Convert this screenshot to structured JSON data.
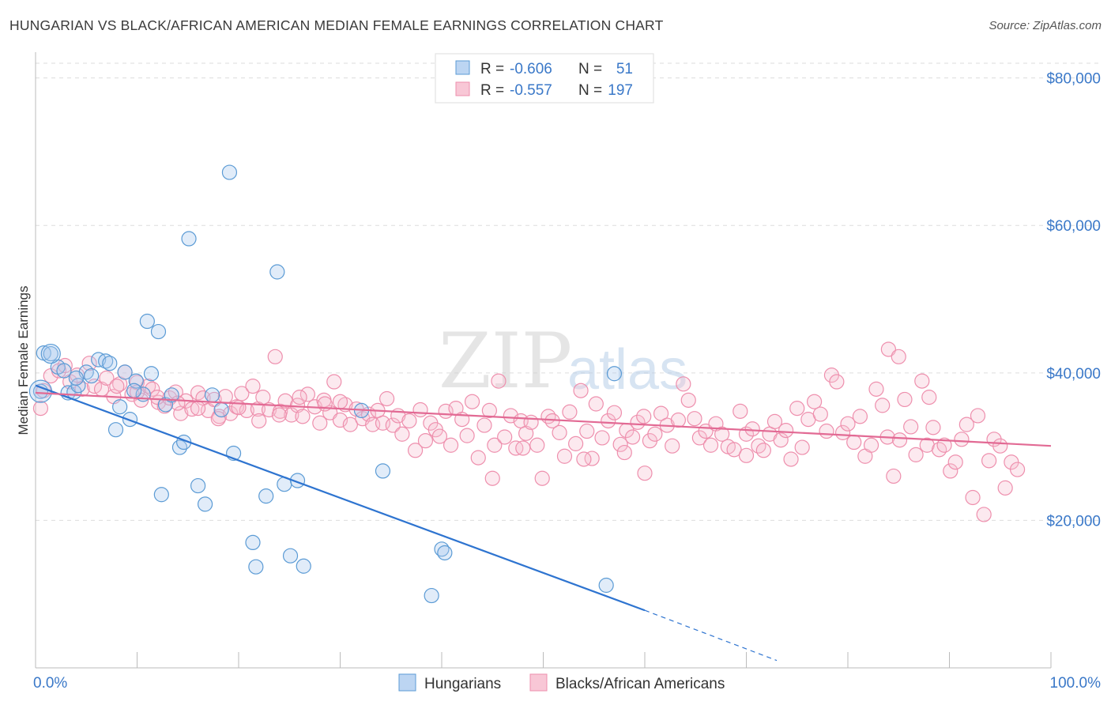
{
  "header": {
    "title": "HUNGARIAN VS BLACK/AFRICAN AMERICAN MEDIAN FEMALE EARNINGS CORRELATION CHART",
    "source": "Source: ZipAtlas.com"
  },
  "watermark": {
    "zip": "ZIP",
    "atlas": "atlas"
  },
  "colors": {
    "blue": "#5b9bd5",
    "blue_line": "#2e74d0",
    "pink": "#ee8fad",
    "pink_line": "#e26a94",
    "axis_text": "#3a78c8",
    "grid": "#dddddd"
  },
  "legend": {
    "rows": [
      {
        "r_label": "R =",
        "r_value": "-0.606",
        "n_label": "N =",
        "n_value": "51"
      },
      {
        "r_label": "R =",
        "r_value": "-0.557",
        "n_label": "N =",
        "n_value": "197"
      }
    ]
  },
  "chart_data": {
    "type": "scatter",
    "xlabel": "",
    "ylabel": "Median Female Earnings",
    "xlim": [
      0,
      100
    ],
    "ylim": [
      0,
      82000
    ],
    "x_tick_labels": [
      "0.0%",
      "100.0%"
    ],
    "y_ticks": [
      {
        "value": 20000,
        "label": "$20,000"
      },
      {
        "value": 40000,
        "label": "$40,000"
      },
      {
        "value": 60000,
        "label": "$60,000"
      },
      {
        "value": 80000,
        "label": "$80,000"
      }
    ],
    "grid": true,
    "legend_position": "bottom",
    "series": [
      {
        "name": "Hungarians",
        "color": "#5b9bd5",
        "points": [
          [
            0.5,
            37500
          ],
          [
            0.8,
            42700
          ],
          [
            1.5,
            42600
          ],
          [
            2.2,
            40800
          ],
          [
            2.8,
            40300
          ],
          [
            3.2,
            37300
          ],
          [
            3.8,
            37400
          ],
          [
            4.2,
            38300
          ],
          [
            5.0,
            40100
          ],
          [
            5.5,
            39600
          ],
          [
            6.2,
            41800
          ],
          [
            6.9,
            41600
          ],
          [
            7.3,
            41300
          ],
          [
            7.9,
            32300
          ],
          [
            8.3,
            35400
          ],
          [
            8.8,
            40100
          ],
          [
            9.3,
            33700
          ],
          [
            9.9,
            38900
          ],
          [
            10.6,
            37100
          ],
          [
            11.0,
            47000
          ],
          [
            11.4,
            39900
          ],
          [
            12.1,
            45600
          ],
          [
            12.4,
            23500
          ],
          [
            12.8,
            35700
          ],
          [
            13.4,
            37000
          ],
          [
            14.2,
            29900
          ],
          [
            14.6,
            30600
          ],
          [
            15.1,
            58200
          ],
          [
            16.0,
            24700
          ],
          [
            16.7,
            22200
          ],
          [
            17.4,
            37000
          ],
          [
            18.3,
            35000
          ],
          [
            19.1,
            67200
          ],
          [
            19.5,
            29100
          ],
          [
            21.4,
            17000
          ],
          [
            21.7,
            13700
          ],
          [
            22.7,
            23300
          ],
          [
            23.8,
            53700
          ],
          [
            24.5,
            24900
          ],
          [
            25.1,
            15200
          ],
          [
            25.8,
            25400
          ],
          [
            26.4,
            13800
          ],
          [
            32.1,
            34900
          ],
          [
            34.2,
            26700
          ],
          [
            39.0,
            9800
          ],
          [
            40.0,
            16100
          ],
          [
            40.3,
            15600
          ],
          [
            56.2,
            11200
          ],
          [
            57.0,
            39900
          ],
          [
            4.0,
            39300
          ],
          [
            9.7,
            37600
          ]
        ]
      },
      {
        "name": "Blacks/African Americans",
        "color": "#ee8fad",
        "points": [
          [
            0.5,
            35200
          ],
          [
            0.8,
            37600
          ],
          [
            1.5,
            39600
          ],
          [
            2.3,
            40300
          ],
          [
            2.9,
            41000
          ],
          [
            3.4,
            38800
          ],
          [
            4.1,
            39700
          ],
          [
            4.6,
            37800
          ],
          [
            5.3,
            41300
          ],
          [
            5.8,
            38200
          ],
          [
            6.5,
            37800
          ],
          [
            7.0,
            39300
          ],
          [
            7.7,
            36800
          ],
          [
            8.3,
            38500
          ],
          [
            8.8,
            40100
          ],
          [
            9.5,
            37100
          ],
          [
            10.0,
            38700
          ],
          [
            10.4,
            36300
          ],
          [
            11.1,
            38200
          ],
          [
            11.5,
            37800
          ],
          [
            12.1,
            36000
          ],
          [
            12.7,
            35500
          ],
          [
            13.2,
            36600
          ],
          [
            13.8,
            37400
          ],
          [
            14.3,
            34500
          ],
          [
            14.8,
            36200
          ],
          [
            15.4,
            35100
          ],
          [
            16.0,
            37300
          ],
          [
            16.5,
            36600
          ],
          [
            17.0,
            34900
          ],
          [
            17.6,
            36400
          ],
          [
            18.1,
            34100
          ],
          [
            18.7,
            36800
          ],
          [
            19.2,
            34500
          ],
          [
            19.8,
            35400
          ],
          [
            20.3,
            37200
          ],
          [
            20.8,
            34900
          ],
          [
            21.4,
            38200
          ],
          [
            21.9,
            35100
          ],
          [
            22.4,
            36700
          ],
          [
            23.0,
            35000
          ],
          [
            23.6,
            42200
          ],
          [
            24.1,
            34800
          ],
          [
            24.6,
            36200
          ],
          [
            25.2,
            34300
          ],
          [
            25.8,
            35600
          ],
          [
            26.3,
            34100
          ],
          [
            26.8,
            37100
          ],
          [
            27.5,
            35400
          ],
          [
            28.0,
            33200
          ],
          [
            28.4,
            36300
          ],
          [
            29.0,
            34600
          ],
          [
            29.4,
            38800
          ],
          [
            30.0,
            33600
          ],
          [
            30.5,
            35700
          ],
          [
            31.0,
            33000
          ],
          [
            31.6,
            35100
          ],
          [
            32.2,
            33800
          ],
          [
            32.8,
            34400
          ],
          [
            33.2,
            33000
          ],
          [
            33.7,
            34900
          ],
          [
            34.2,
            33200
          ],
          [
            34.6,
            36500
          ],
          [
            35.2,
            32900
          ],
          [
            35.7,
            34200
          ],
          [
            36.1,
            31700
          ],
          [
            36.8,
            33500
          ],
          [
            37.4,
            29500
          ],
          [
            37.9,
            35000
          ],
          [
            38.4,
            30800
          ],
          [
            38.9,
            33200
          ],
          [
            39.4,
            32300
          ],
          [
            39.8,
            31400
          ],
          [
            40.4,
            34800
          ],
          [
            40.9,
            30200
          ],
          [
            41.4,
            35200
          ],
          [
            42.0,
            33700
          ],
          [
            42.5,
            31500
          ],
          [
            43.0,
            36100
          ],
          [
            43.6,
            28500
          ],
          [
            44.2,
            32900
          ],
          [
            44.7,
            34900
          ],
          [
            45.2,
            30200
          ],
          [
            45.6,
            38900
          ],
          [
            46.2,
            31300
          ],
          [
            46.8,
            34200
          ],
          [
            47.3,
            29800
          ],
          [
            47.8,
            33500
          ],
          [
            48.3,
            31800
          ],
          [
            48.8,
            33300
          ],
          [
            49.4,
            30200
          ],
          [
            49.9,
            25700
          ],
          [
            50.5,
            34100
          ],
          [
            50.9,
            33500
          ],
          [
            51.6,
            31900
          ],
          [
            52.1,
            28700
          ],
          [
            52.6,
            34700
          ],
          [
            53.2,
            30400
          ],
          [
            53.7,
            37600
          ],
          [
            54.3,
            32100
          ],
          [
            54.8,
            28400
          ],
          [
            55.2,
            35800
          ],
          [
            55.8,
            31200
          ],
          [
            56.4,
            33500
          ],
          [
            57.0,
            34600
          ],
          [
            57.6,
            30300
          ],
          [
            58.2,
            32200
          ],
          [
            58.8,
            31300
          ],
          [
            59.3,
            33300
          ],
          [
            59.9,
            34100
          ],
          [
            60.5,
            30800
          ],
          [
            61.0,
            31700
          ],
          [
            61.6,
            34500
          ],
          [
            62.2,
            32900
          ],
          [
            62.7,
            30100
          ],
          [
            63.3,
            33600
          ],
          [
            63.8,
            38500
          ],
          [
            64.3,
            36300
          ],
          [
            64.9,
            33800
          ],
          [
            65.4,
            31200
          ],
          [
            66.0,
            32100
          ],
          [
            66.5,
            30200
          ],
          [
            67.0,
            33100
          ],
          [
            67.6,
            31700
          ],
          [
            68.2,
            30000
          ],
          [
            68.8,
            29600
          ],
          [
            69.4,
            34800
          ],
          [
            70.0,
            31700
          ],
          [
            70.6,
            32400
          ],
          [
            71.2,
            30100
          ],
          [
            71.7,
            29500
          ],
          [
            72.3,
            31700
          ],
          [
            72.8,
            33400
          ],
          [
            73.4,
            30900
          ],
          [
            73.9,
            32200
          ],
          [
            74.4,
            28300
          ],
          [
            75.0,
            35200
          ],
          [
            75.5,
            29900
          ],
          [
            76.1,
            33700
          ],
          [
            76.7,
            36100
          ],
          [
            77.3,
            34400
          ],
          [
            77.9,
            32100
          ],
          [
            78.4,
            39700
          ],
          [
            78.9,
            38800
          ],
          [
            79.5,
            31900
          ],
          [
            80.0,
            33100
          ],
          [
            80.6,
            30600
          ],
          [
            81.2,
            34100
          ],
          [
            81.7,
            28700
          ],
          [
            82.3,
            30200
          ],
          [
            82.8,
            37800
          ],
          [
            83.4,
            35600
          ],
          [
            83.9,
            31300
          ],
          [
            84.5,
            26000
          ],
          [
            85.1,
            30900
          ],
          [
            85.6,
            36400
          ],
          [
            86.2,
            32700
          ],
          [
            86.7,
            28900
          ],
          [
            87.3,
            38900
          ],
          [
            87.8,
            30200
          ],
          [
            88.4,
            32600
          ],
          [
            89.0,
            29600
          ],
          [
            89.5,
            30200
          ],
          [
            90.1,
            26700
          ],
          [
            90.6,
            27900
          ],
          [
            91.2,
            31000
          ],
          [
            91.7,
            33000
          ],
          [
            92.3,
            23100
          ],
          [
            92.8,
            34200
          ],
          [
            93.4,
            20800
          ],
          [
            93.9,
            28100
          ],
          [
            94.4,
            31000
          ],
          [
            95.0,
            30100
          ],
          [
            95.5,
            24400
          ],
          [
            96.1,
            27900
          ],
          [
            96.7,
            26900
          ],
          [
            88.0,
            36700
          ],
          [
            84.0,
            43200
          ],
          [
            85.0,
            42200
          ],
          [
            70.0,
            28800
          ],
          [
            60.0,
            26400
          ],
          [
            58.0,
            29200
          ],
          [
            54.0,
            28300
          ],
          [
            48.0,
            29800
          ],
          [
            45.0,
            25700
          ],
          [
            30.0,
            36100
          ],
          [
            28.5,
            35800
          ],
          [
            26.0,
            36700
          ],
          [
            24.0,
            34300
          ],
          [
            22.0,
            33500
          ],
          [
            20.0,
            35300
          ],
          [
            18.0,
            33800
          ],
          [
            16.0,
            35200
          ],
          [
            14.0,
            35900
          ],
          [
            12.0,
            36700
          ],
          [
            10.0,
            37400
          ],
          [
            8.0,
            38200
          ]
        ]
      }
    ],
    "trend_lines": [
      {
        "series": "Hungarians",
        "x": [
          0,
          60
        ],
        "y": [
          38300,
          7800
        ],
        "dashed_extension_to": [
          73,
          1000
        ]
      },
      {
        "series": "Blacks/African Americans",
        "x": [
          0,
          100
        ],
        "y": [
          37300,
          30100
        ]
      }
    ]
  }
}
